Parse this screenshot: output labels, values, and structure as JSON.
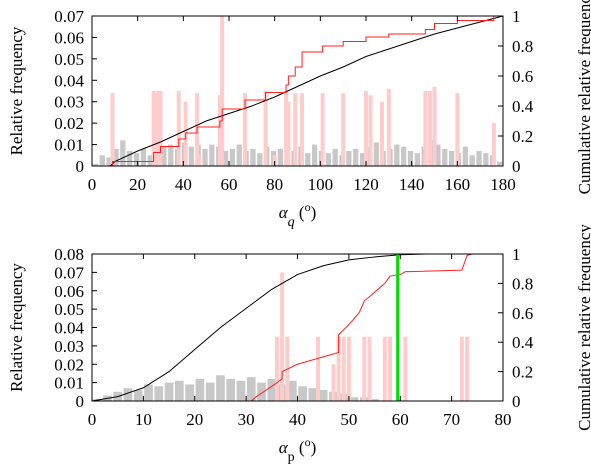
{
  "chart_data": [
    {
      "type": "histogram_cdf",
      "xlabel": [
        {
          "text": "α",
          "style": "italic"
        },
        {
          "text": "q",
          "style": "sub-italic"
        },
        {
          "text": " (",
          "style": "normal"
        },
        {
          "text": "o",
          "style": "sup"
        },
        {
          "text": ")",
          "style": "normal"
        }
      ],
      "ylabel": "Relative frequency",
      "y2label": "Cumulative relative frequency",
      "xlim": [
        0,
        180
      ],
      "xticks": [
        0,
        20,
        40,
        60,
        80,
        100,
        120,
        140,
        160,
        180
      ],
      "ylim": [
        0,
        0.07
      ],
      "yticks": [
        0,
        0.01,
        0.02,
        0.03,
        0.04,
        0.05,
        0.06,
        0.07
      ],
      "y2lim": [
        0,
        1
      ],
      "y2ticks": [
        0,
        0.2,
        0.4,
        0.6,
        0.8,
        1
      ],
      "series": [
        {
          "type": "histogram",
          "color": "#c8c8c8",
          "bins": [
            0,
            3,
            6,
            9,
            12,
            15,
            18,
            21,
            24,
            27,
            30,
            33,
            36,
            39,
            42,
            45,
            48,
            51,
            54,
            57,
            60,
            63,
            66,
            69,
            72,
            75,
            78,
            81,
            84,
            87,
            90,
            93,
            96,
            99,
            102,
            105,
            108,
            111,
            114,
            117,
            120,
            123,
            126,
            129,
            132,
            135,
            138,
            141,
            144,
            147,
            150,
            153,
            156,
            159,
            162,
            165,
            168,
            171,
            174,
            177,
            180
          ],
          "values": [
            0.001,
            0.005,
            0.004,
            0.008,
            0.012,
            0.007,
            0.006,
            0.008,
            0.005,
            0.006,
            0.009,
            0.01,
            0.008,
            0.011,
            0.009,
            0.01,
            0.008,
            0.01,
            0.009,
            0.007,
            0.008,
            0.01,
            0.007,
            0.008,
            0.006,
            0.009,
            0.007,
            0.008,
            0.011,
            0.007,
            0.009,
            0.006,
            0.01,
            0.007,
            0.006,
            0.008,
            0.005,
            0.007,
            0.008,
            0.006,
            0.009,
            0.011,
            0.007,
            0.008,
            0.01,
            0.009,
            0.007,
            0.006,
            0.009,
            0.012,
            0.01,
            0.008,
            0.007,
            0.006,
            0.009,
            0.005,
            0.007,
            0.006,
            0.005,
            0.002
          ]
        },
        {
          "type": "spikes",
          "color": "#ffcccc",
          "x": [
            9,
            27,
            28,
            29,
            30,
            38,
            41,
            46,
            47,
            56,
            57,
            67,
            76,
            80,
            85,
            86,
            89,
            92,
            101,
            110,
            120,
            122,
            127,
            130,
            146,
            148,
            150,
            160,
            176
          ],
          "values": [
            0.034,
            0.035,
            0.034,
            0.035,
            0.035,
            0.035,
            0.03,
            0.034,
            0.005,
            0.033,
            0.07,
            0.034,
            0.035,
            0.005,
            0.035,
            0.03,
            0.034,
            0.034,
            0.034,
            0.034,
            0.035,
            0.033,
            0.03,
            0.036,
            0.035,
            0.035,
            0.037,
            0.034,
            0.02
          ]
        },
        {
          "type": "line",
          "axis": "y2",
          "color": "#000000",
          "x": [
            8,
            10,
            20,
            30,
            40,
            50,
            60,
            70,
            80,
            90,
            100,
            110,
            120,
            130,
            140,
            150,
            160,
            170,
            180
          ],
          "values": [
            0,
            0.03,
            0.1,
            0.16,
            0.23,
            0.3,
            0.35,
            0.4,
            0.46,
            0.53,
            0.6,
            0.66,
            0.73,
            0.78,
            0.83,
            0.88,
            0.92,
            0.96,
            1
          ]
        },
        {
          "type": "line",
          "axis": "y2",
          "color": "#ff2020",
          "x": [
            9,
            9,
            27,
            27,
            30,
            30,
            38,
            38,
            41,
            41,
            46,
            46,
            56,
            56,
            57,
            57,
            67,
            67,
            76,
            76,
            85,
            85,
            86,
            86,
            89,
            89,
            92,
            92,
            101,
            101,
            110,
            110,
            120,
            120,
            130,
            130,
            146,
            146,
            150,
            150,
            160,
            160,
            176,
            176,
            178
          ],
          "values": [
            0,
            0.03,
            0.03,
            0.09,
            0.09,
            0.13,
            0.13,
            0.18,
            0.18,
            0.22,
            0.22,
            0.26,
            0.26,
            0.3,
            0.3,
            0.38,
            0.38,
            0.44,
            0.44,
            0.49,
            0.49,
            0.54,
            0.54,
            0.6,
            0.6,
            0.66,
            0.66,
            0.76,
            0.76,
            0.8,
            0.8,
            0.83,
            0.83,
            0.86,
            0.86,
            0.88,
            0.88,
            0.91,
            0.91,
            0.95,
            0.95,
            0.97,
            0.97,
            1,
            1
          ]
        }
      ]
    },
    {
      "type": "histogram_cdf",
      "xlabel": [
        {
          "text": "α",
          "style": "italic"
        },
        {
          "text": "p",
          "style": "sub"
        },
        {
          "text": " (",
          "style": "normal"
        },
        {
          "text": "o",
          "style": "sup"
        },
        {
          "text": ")",
          "style": "normal"
        }
      ],
      "ylabel": "Relative frequency",
      "y2label": "Cumulative relative frequency",
      "xlim": [
        0,
        80
      ],
      "xticks": [
        0,
        10,
        20,
        30,
        40,
        50,
        60,
        70,
        80
      ],
      "ylim": [
        0,
        0.08
      ],
      "yticks": [
        0,
        0.01,
        0.02,
        0.03,
        0.04,
        0.05,
        0.06,
        0.07,
        0.08
      ],
      "y2lim": [
        0,
        1
      ],
      "y2ticks": [
        0,
        0.2,
        0.4,
        0.6,
        0.8,
        1
      ],
      "series": [
        {
          "type": "histogram",
          "color": "#c8c8c8",
          "bins": [
            0,
            2,
            4,
            6,
            8,
            10,
            12,
            14,
            16,
            18,
            20,
            22,
            24,
            26,
            28,
            30,
            32,
            34,
            36,
            38,
            40,
            42,
            44,
            46,
            48,
            50,
            52,
            54,
            56,
            58,
            60,
            62,
            64,
            66,
            68,
            70,
            72,
            74,
            76,
            78,
            80
          ],
          "values": [
            0.001,
            0.003,
            0.005,
            0.007,
            0.006,
            0.009,
            0.008,
            0.01,
            0.011,
            0.009,
            0.012,
            0.01,
            0.014,
            0.012,
            0.011,
            0.013,
            0.01,
            0.012,
            0.009,
            0.011,
            0.008,
            0.007,
            0.006,
            0.005,
            0.004,
            0.002,
            0.002,
            0.001,
            0,
            0,
            0,
            0,
            0,
            0,
            0,
            0,
            0,
            0,
            0,
            0
          ]
        },
        {
          "type": "spikes",
          "color": "#ffcccc",
          "x": [
            36,
            37,
            38,
            44,
            47,
            48,
            49,
            50,
            53,
            54,
            57,
            58,
            61,
            72,
            73
          ],
          "values": [
            0.035,
            0.07,
            0.035,
            0.035,
            0.02,
            0.035,
            0.035,
            0.035,
            0.035,
            0.035,
            0.035,
            0.035,
            0.035,
            0.035,
            0.035
          ]
        },
        {
          "type": "line",
          "axis": "y2",
          "color": "#000000",
          "x": [
            0,
            5,
            10,
            15,
            20,
            25,
            30,
            35,
            40,
            45,
            50,
            55,
            60,
            65,
            80
          ],
          "values": [
            0,
            0.03,
            0.09,
            0.2,
            0.35,
            0.5,
            0.63,
            0.76,
            0.86,
            0.92,
            0.96,
            0.98,
            0.995,
            1,
            1
          ]
        },
        {
          "type": "line",
          "axis": "y2",
          "color": "#ff2020",
          "x": [
            31,
            32,
            35,
            37,
            37,
            40,
            45,
            48,
            48,
            50,
            52,
            53,
            55,
            57,
            58,
            60,
            61,
            62,
            72,
            73,
            74
          ],
          "values": [
            0,
            0.03,
            0.1,
            0.15,
            0.2,
            0.25,
            0.3,
            0.33,
            0.45,
            0.52,
            0.6,
            0.68,
            0.74,
            0.8,
            0.85,
            0.86,
            0.88,
            0.88,
            0.89,
            0.99,
            1
          ]
        },
        {
          "type": "vline",
          "color": "#00dd00",
          "x": 59.5
        }
      ]
    }
  ]
}
